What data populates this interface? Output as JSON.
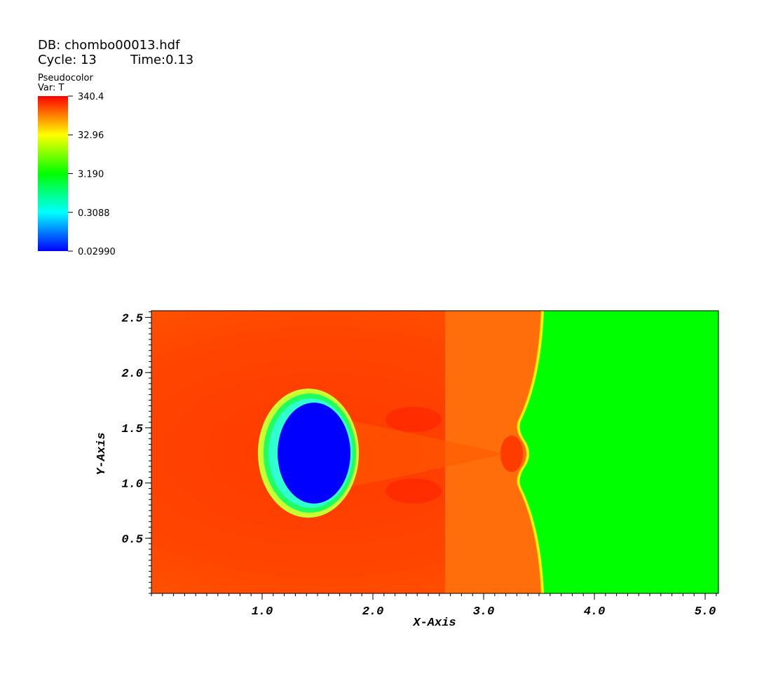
{
  "header": {
    "database": "DB: chombo00013.hdf",
    "cycle": "Cycle: 13",
    "time": "Time:0.13"
  },
  "chart_data": {
    "type": "pseudocolor",
    "legend": {
      "plot": "Pseudocolor",
      "variable": "Var: T",
      "scale": "log",
      "colors": [
        "#0000ff",
        "#00ffff",
        "#00ff00",
        "#ffff00",
        "#ff0000"
      ],
      "lim": [
        {
          "value": 0.0299,
          "label": "0.02990"
        },
        340.4
      ],
      "ticks": [
        340.4,
        32.96,
        {
          "value": 3.19,
          "label": "3.190"
        },
        0.3088,
        {
          "value": 0.0299,
          "label": "0.02990"
        }
      ]
    },
    "x_label": "X-Axis",
    "y_label": "Y-Axis",
    "xlim": [
      0,
      5.12
    ],
    "ylim": [
      0,
      2.56
    ],
    "xticks": [
      {
        "value": 1,
        "label": "1.0"
      },
      {
        "value": 2,
        "label": "2.0"
      },
      {
        "value": 3,
        "label": "3.0"
      },
      {
        "value": 4,
        "label": "4.0"
      },
      {
        "value": 5,
        "label": "5.0"
      }
    ],
    "yticks": [
      0.5,
      {
        "value": 1,
        "label": "1.0"
      },
      1.5,
      {
        "value": 2,
        "label": "2.0"
      },
      2.5
    ]
  }
}
